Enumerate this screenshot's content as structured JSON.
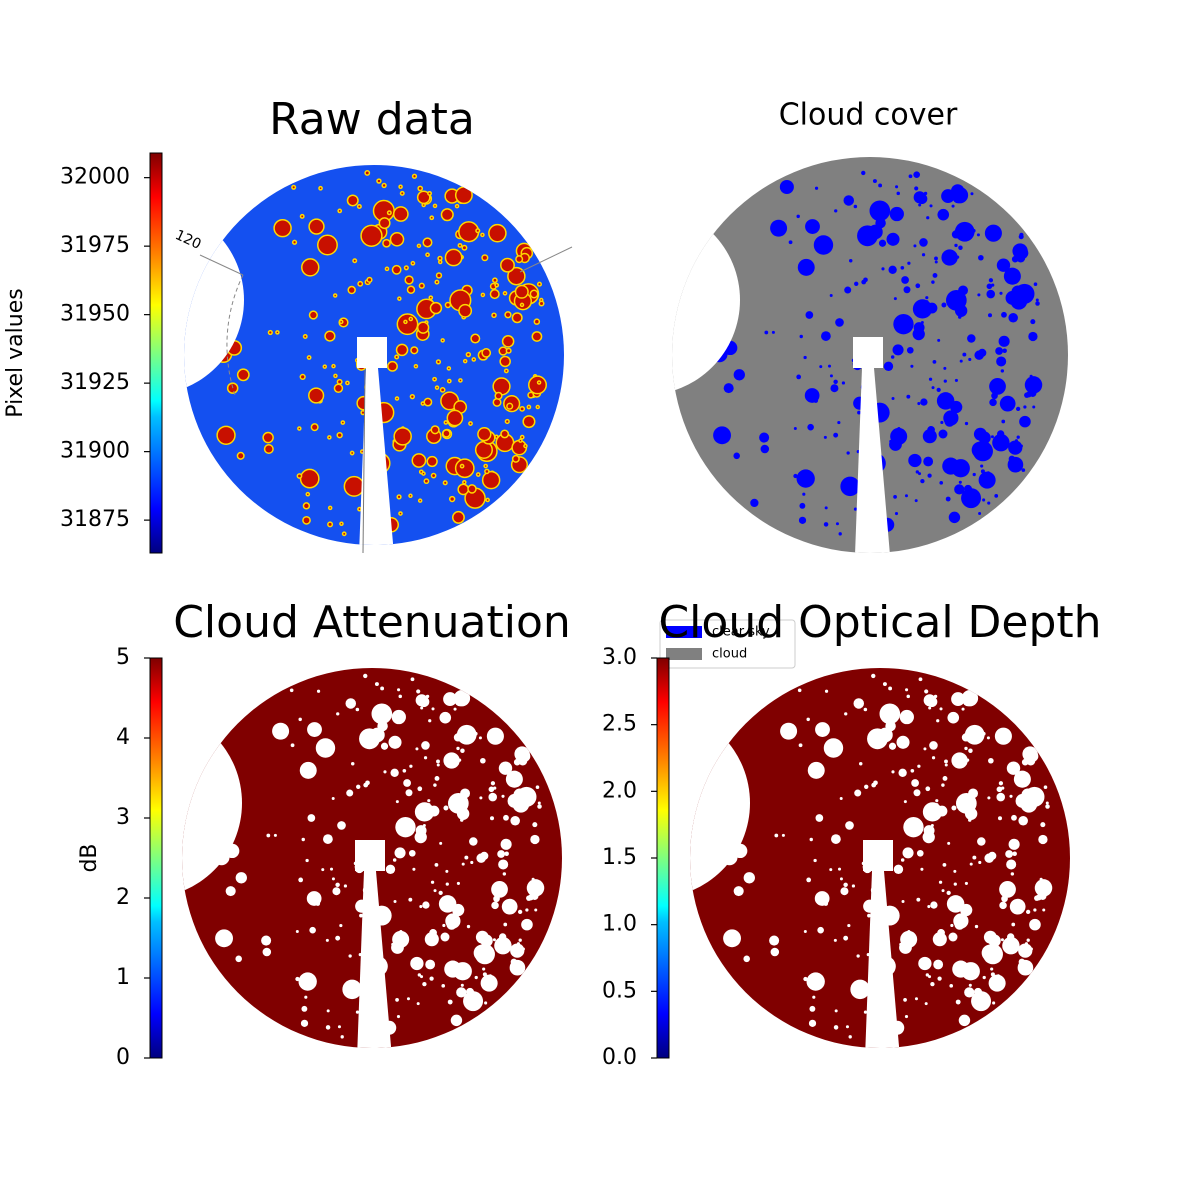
{
  "chart_data": [
    {
      "type": "image",
      "title": "Raw data",
      "colorbar_label": "Pixel values",
      "colormap": "jet",
      "ylim": [
        31863,
        32009
      ],
      "yticks": [
        31875,
        31900,
        31925,
        31950,
        31975,
        32000
      ],
      "annotations": [
        "120"
      ]
    },
    {
      "type": "image",
      "title": "Cloud cover",
      "series": [
        {
          "name": "clear sky",
          "color": "#0000ff"
        },
        {
          "name": "cloud",
          "color": "#808080"
        }
      ]
    },
    {
      "type": "image",
      "title": "Cloud Attenuation",
      "colorbar_label": "dB",
      "colormap": "jet",
      "ylim": [
        0,
        5
      ],
      "yticks": [
        0,
        1,
        2,
        3,
        4,
        5
      ]
    },
    {
      "type": "image",
      "title": "Cloud Optical Depth",
      "colormap": "jet",
      "ylim": [
        0,
        3
      ],
      "yticks": [
        {
          "value": 0,
          "label": "0.0"
        },
        {
          "value": 0.5,
          "label": "0.5"
        },
        {
          "value": 1,
          "label": "1.0"
        },
        {
          "value": 1.5,
          "label": "1.5"
        },
        {
          "value": 2,
          "label": "2.0"
        },
        {
          "value": 2.5,
          "label": "2.5"
        },
        {
          "value": 3,
          "label": "3.0"
        }
      ]
    }
  ]
}
